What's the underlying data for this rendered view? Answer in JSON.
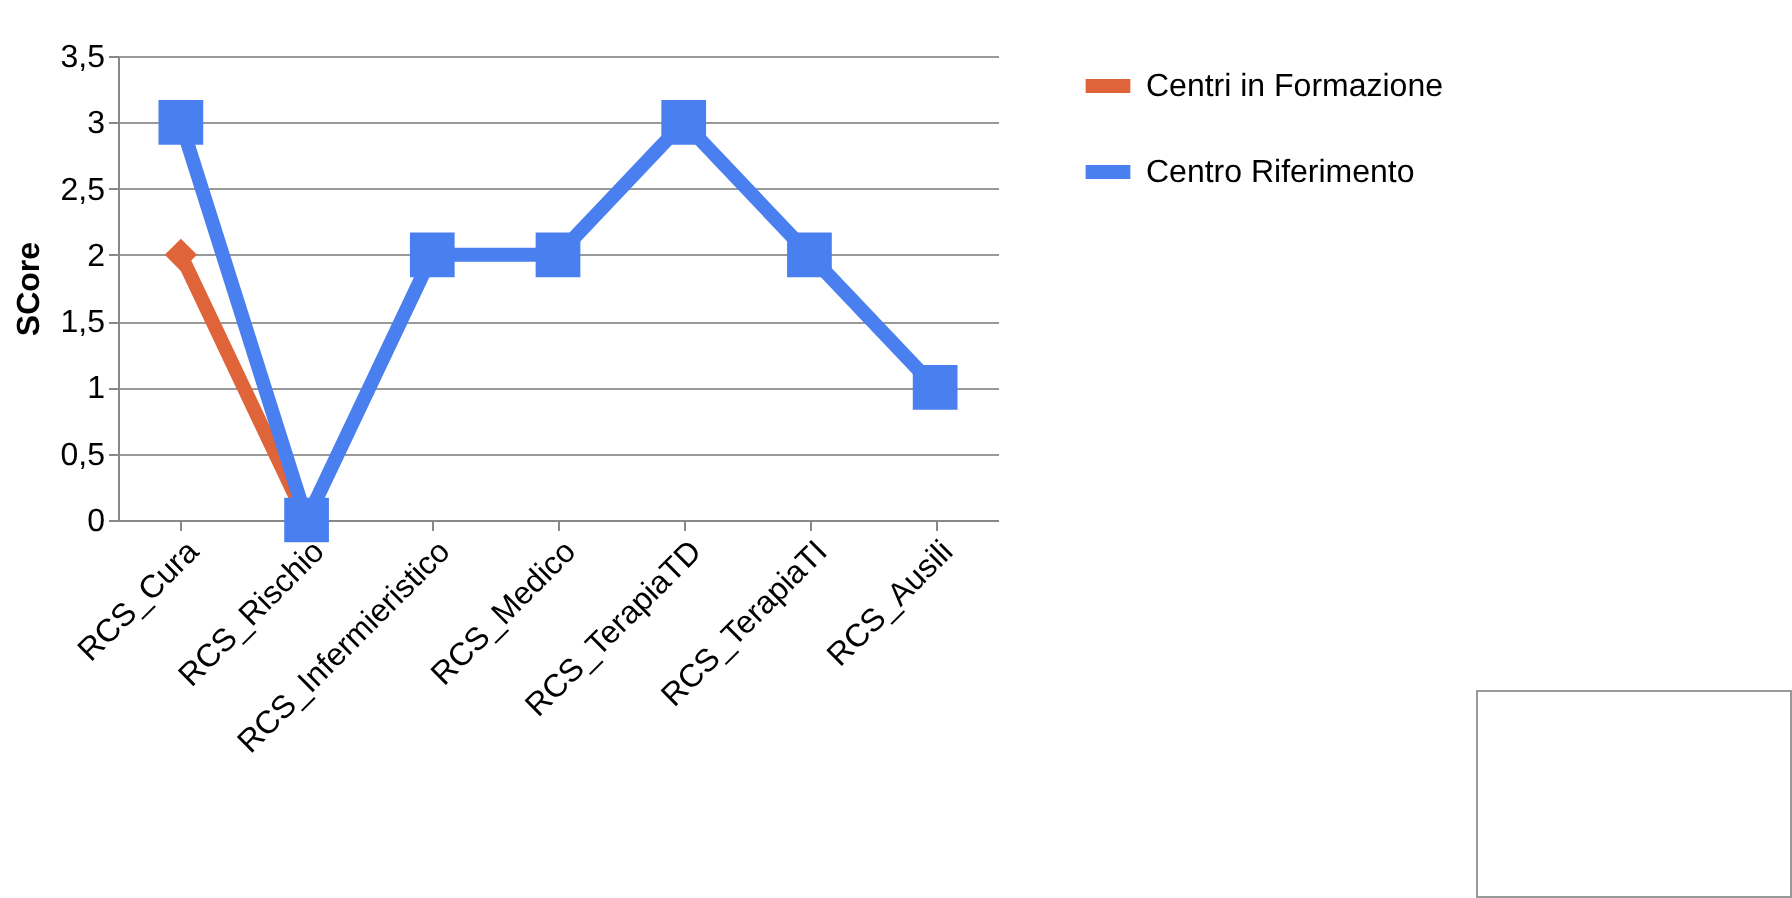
{
  "chart_data": {
    "type": "line",
    "ylabel": "SCore",
    "categories": [
      "RCS_Cura",
      "RCS_Rischio",
      "RCS_Infermieristico",
      "RCS_Medico",
      "RCS_TerapiaTD",
      "RCS_TerapiaTI",
      "RCS_Ausili"
    ],
    "series": [
      {
        "name": "Centri in Formazione",
        "color": "#e0643a",
        "marker": "diamond",
        "values": [
          2,
          0,
          null,
          null,
          null,
          null,
          null
        ]
      },
      {
        "name": "Centro Riferimento",
        "color": "#4a7ff0",
        "marker": "square",
        "values": [
          3,
          0,
          2,
          2,
          3,
          2,
          1
        ]
      }
    ],
    "ylim": [
      0,
      3.5
    ],
    "yticks": [
      {
        "value": 0,
        "label": "0"
      },
      {
        "value": 0.5,
        "label": "0,5"
      },
      {
        "value": 1,
        "label": "1"
      },
      {
        "value": 1.5,
        "label": "1,5"
      },
      {
        "value": 2,
        "label": "2"
      },
      {
        "value": 2.5,
        "label": "2,5"
      },
      {
        "value": 3,
        "label": "3"
      },
      {
        "value": 3.5,
        "label": "3,5"
      }
    ],
    "grid": "y",
    "legend": "right"
  }
}
